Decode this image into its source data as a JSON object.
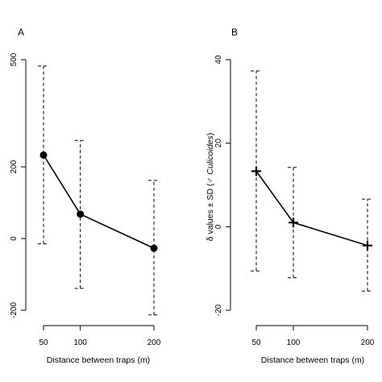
{
  "chart_data": [
    {
      "panel_label": "A",
      "type": "line",
      "marker": "filled-circle",
      "x": [
        50,
        100,
        200
      ],
      "y": [
        233,
        68,
        -27
      ],
      "error_low": [
        -15,
        -139,
        -213
      ],
      "error_high": [
        482,
        274,
        162
      ],
      "xlabel": "Distance between traps (m)",
      "ylabel": "",
      "x_ticks": [
        50,
        100,
        200
      ],
      "y_ticks": [
        -200,
        0,
        200,
        500
      ],
      "y_tick_labels": [
        "-200",
        "0",
        "200",
        "500"
      ],
      "y_scale": "piecewise: equal spacing between 0-200 and 200-500",
      "xlim": [
        38,
        212
      ],
      "ylim": [
        -200,
        500
      ],
      "grid": false,
      "legend": "none"
    },
    {
      "panel_label": "B",
      "type": "line",
      "marker": "plus",
      "x": [
        50,
        100,
        200
      ],
      "y": [
        13.3,
        1.0,
        -4.5
      ],
      "error_low": [
        -10.6,
        -12.2,
        -15.4
      ],
      "error_high": [
        37.3,
        14.2,
        6.6
      ],
      "xlabel": "Distance between traps (m)",
      "ylabel_prefix": "δ values ± SD (",
      "ylabel_symbol": "♂",
      "ylabel_italic": "Culicoides",
      "ylabel_suffix": ")",
      "x_ticks": [
        50,
        100,
        200
      ],
      "y_ticks": [
        -20,
        0,
        20,
        40
      ],
      "xlim": [
        38,
        212
      ],
      "ylim": [
        -20,
        40
      ],
      "grid": false,
      "legend": "none"
    }
  ]
}
